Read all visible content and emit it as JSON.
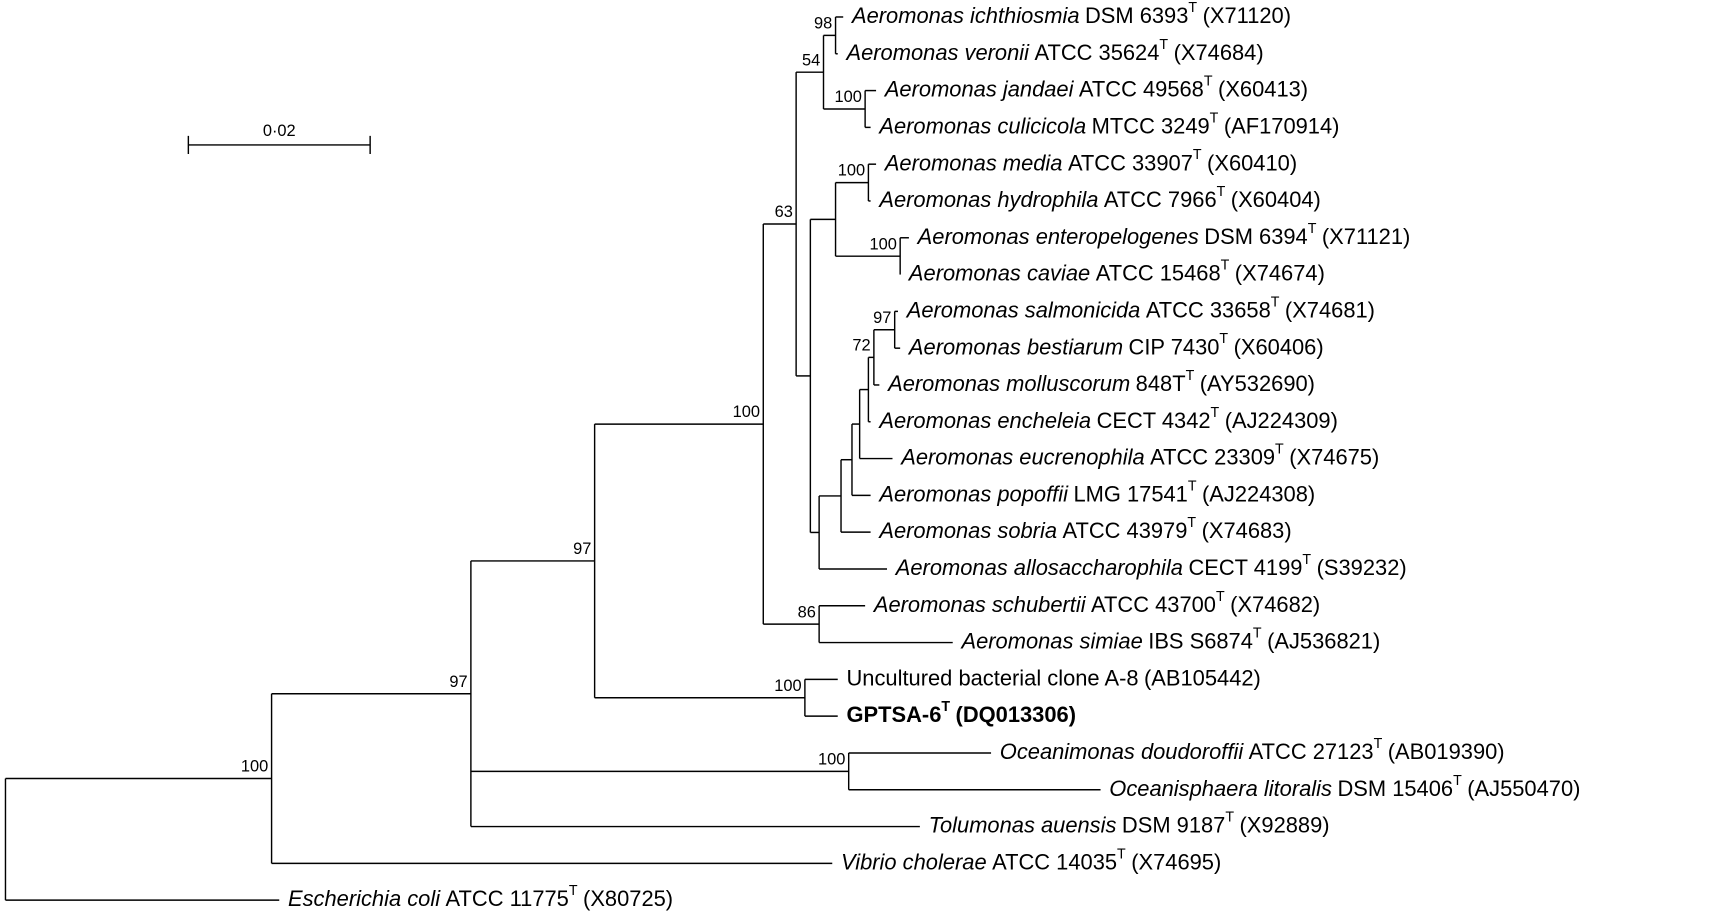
{
  "scale_bar": {
    "label": "0·02"
  },
  "leaves": [
    {
      "taxon": "Aeromonas ichthiosmia",
      "strain": "DSM 6393",
      "sup": "T",
      "accession": "(X71120)"
    },
    {
      "taxon": "Aeromonas veronii",
      "strain": "ATCC 35624",
      "sup": "T",
      "accession": "(X74684)"
    },
    {
      "taxon": "Aeromonas jandaei",
      "strain": "ATCC 49568",
      "sup": "T",
      "accession": "(X60413)"
    },
    {
      "taxon": "Aeromonas culicicola",
      "strain": "MTCC 3249",
      "sup": "T",
      "accession": "(AF170914)"
    },
    {
      "taxon": "Aeromonas media",
      "strain": "ATCC 33907",
      "sup": "T",
      "accession": "(X60410)"
    },
    {
      "taxon": "Aeromonas hydrophila",
      "strain": "ATCC 7966",
      "sup": "T",
      "accession": "(X60404)"
    },
    {
      "taxon": "Aeromonas enteropelogenes",
      "strain": "DSM 6394",
      "sup": "T",
      "accession": "(X71121)"
    },
    {
      "taxon": "Aeromonas caviae",
      "strain": "ATCC 15468",
      "sup": "T",
      "accession": "(X74674)"
    },
    {
      "taxon": "Aeromonas salmonicida",
      "strain": "ATCC 33658",
      "sup": "T",
      "accession": "(X74681)"
    },
    {
      "taxon": "Aeromonas bestiarum",
      "strain": "CIP 7430",
      "sup": "T",
      "accession": "(X60406)"
    },
    {
      "taxon": "Aeromonas molluscorum",
      "strain": "848T",
      "sup": "T",
      "accession": "(AY532690)"
    },
    {
      "taxon": "Aeromonas encheleia",
      "strain": "CECT 4342",
      "sup": "T",
      "accession": "(AJ224309)"
    },
    {
      "taxon": "Aeromonas eucrenophila",
      "strain": "ATCC 23309",
      "sup": "T",
      "accession": "(X74675)"
    },
    {
      "taxon": "Aeromonas popoffii",
      "strain": "LMG 17541",
      "sup": "T",
      "accession": "(AJ224308)"
    },
    {
      "taxon": "Aeromonas sobria",
      "strain": "ATCC 43979",
      "sup": "T",
      "accession": "(X74683)"
    },
    {
      "taxon": "Aeromonas allosaccharophila",
      "strain": "CECT 4199",
      "sup": "T",
      "accession": "(S39232)"
    },
    {
      "taxon": "Aeromonas schubertii",
      "strain": "ATCC 43700",
      "sup": "T",
      "accession": "(X74682)"
    },
    {
      "taxon": "Aeromonas simiae",
      "strain": "IBS S6874",
      "sup": "T",
      "accession": "(AJ536821)"
    },
    {
      "strain": "Uncultured bacterial clone A-8",
      "accession": "(AB105442)"
    },
    {
      "strain": "GPTSA-6",
      "sup": "T",
      "accession": "(DQ013306)",
      "bold": true
    },
    {
      "taxon": "Oceanimonas doudoroffii",
      "strain": "ATCC 27123",
      "sup": "T",
      "accession": "(AB019390)"
    },
    {
      "taxon": "Oceanisphaera litoralis",
      "strain": "DSM 15406",
      "sup": "T",
      "accession": "(AJ550470)"
    },
    {
      "taxon": "Tolumonas auensis",
      "strain": "DSM 9187",
      "sup": "T",
      "accession": "(X92889)"
    },
    {
      "taxon": "Vibrio cholerae",
      "strain": "ATCC 14035",
      "sup": "T",
      "accession": "(X74695)"
    },
    {
      "taxon": "Escherichia coli",
      "strain": "ATCC 11775",
      "sup": "T",
      "accession": "(X80725)"
    }
  ],
  "bootstrap": [
    98,
    54,
    100,
    100,
    100,
    63,
    97,
    72,
    86,
    100,
    100,
    97,
    100,
    97,
    100
  ]
}
